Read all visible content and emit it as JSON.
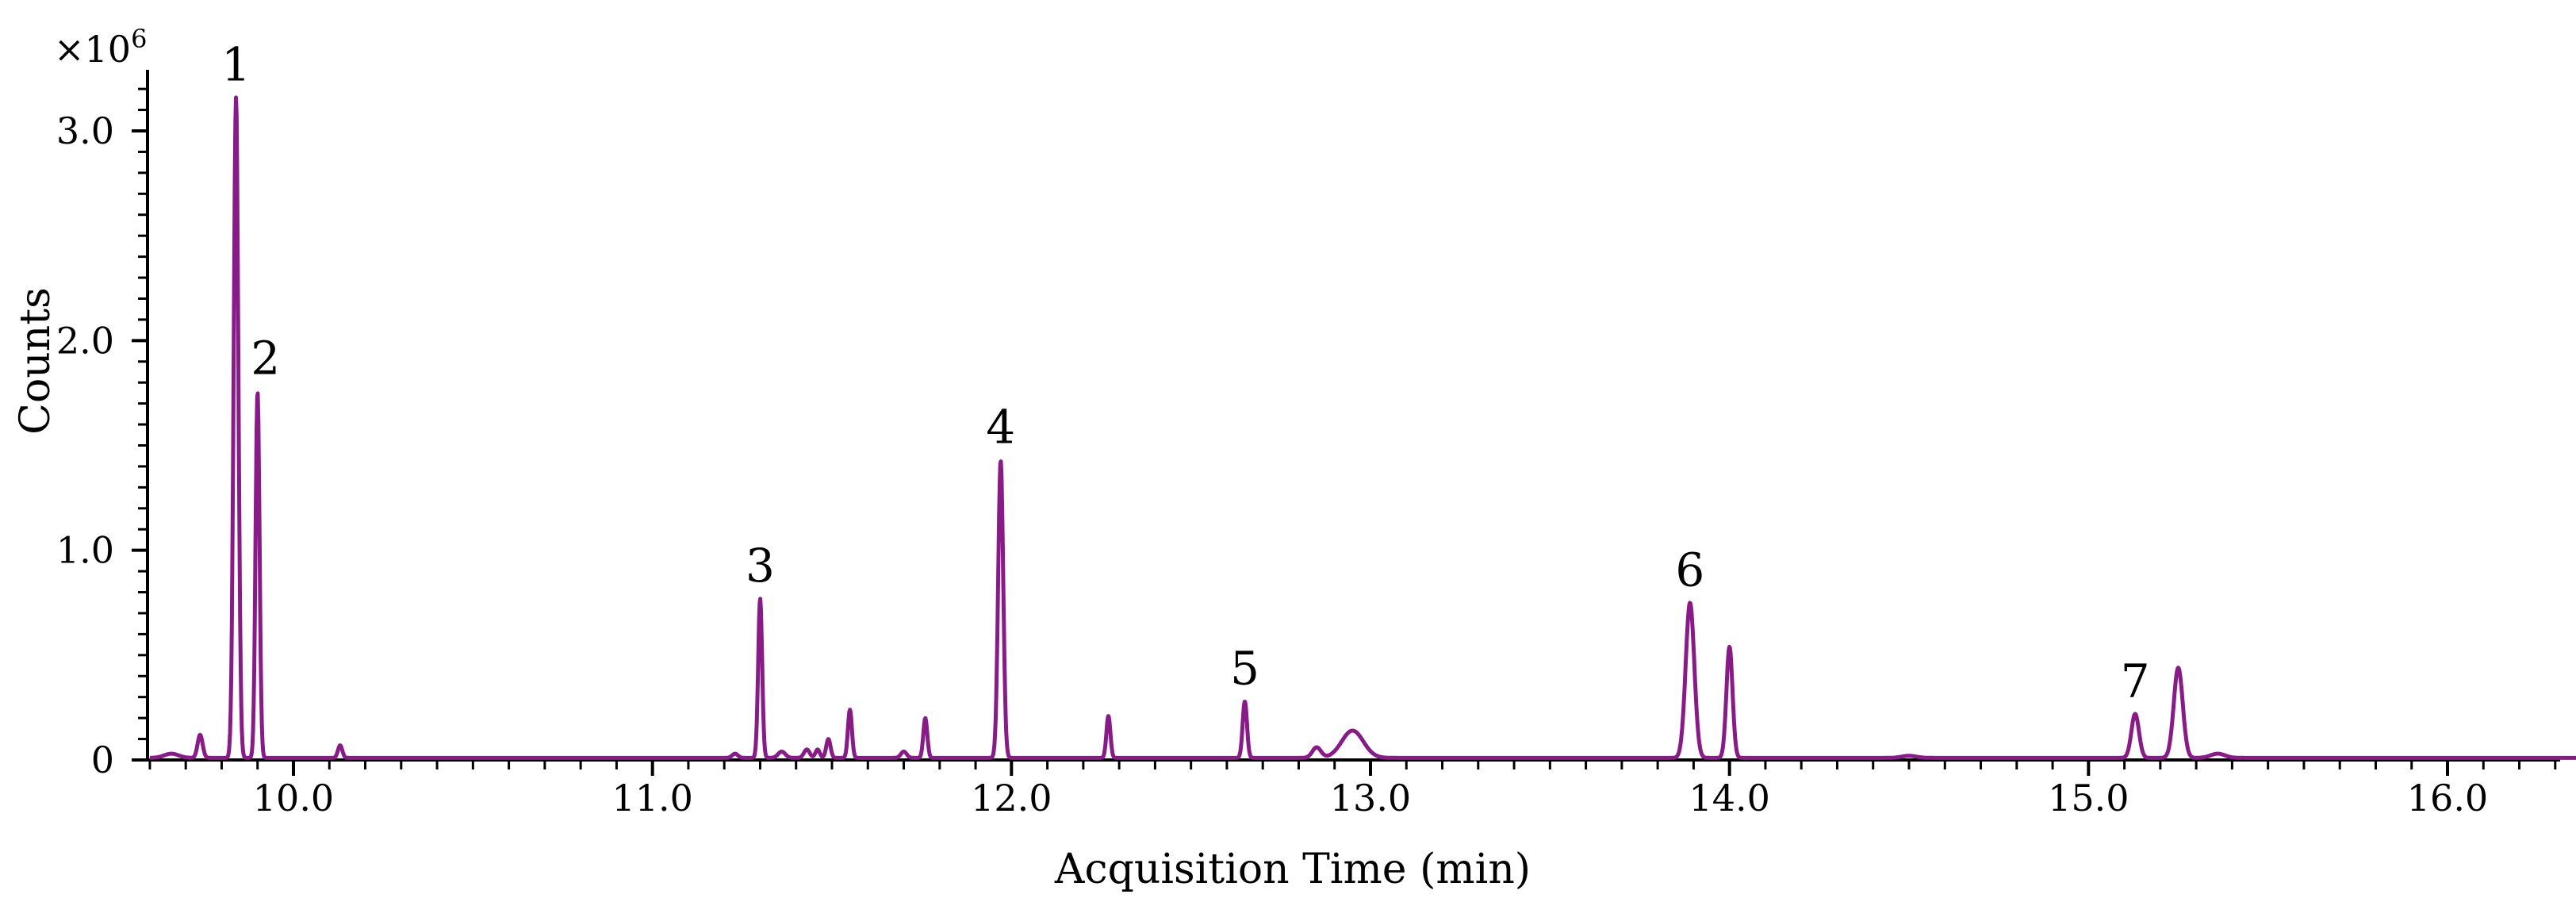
{
  "chart_data": {
    "type": "line",
    "xlabel": "Acquisition Time (min)",
    "ylabel": "Counts",
    "y_multiplier_label": "×10",
    "y_multiplier_exponent": "6",
    "xlim": [
      9.6,
      16.5
    ],
    "ylim": [
      0,
      3.3
    ],
    "x_ticks": [
      {
        "value": 10.0,
        "label": "10.0"
      },
      {
        "value": 11.0,
        "label": "11.0"
      },
      {
        "value": 12.0,
        "label": "12.0"
      },
      {
        "value": 13.0,
        "label": "13.0"
      },
      {
        "value": 14.0,
        "label": "14.0"
      },
      {
        "value": 15.0,
        "label": "15.0"
      },
      {
        "value": 16.0,
        "label": "16.0"
      }
    ],
    "y_ticks": [
      {
        "value": 0,
        "label": "0"
      },
      {
        "value": 1.0,
        "label": "1.0"
      },
      {
        "value": 2.0,
        "label": "2.0"
      },
      {
        "value": 3.0,
        "label": "3.0"
      }
    ],
    "line_color": "#8a1a8a",
    "baseline": 0.01,
    "peaks": [
      {
        "t": 9.66,
        "h": 0.02,
        "w": 0.02
      },
      {
        "t": 9.74,
        "h": 0.11,
        "w": 0.007
      },
      {
        "t": 9.84,
        "h": 3.15,
        "w": 0.0065
      },
      {
        "t": 9.9,
        "h": 1.75,
        "w": 0.0055
      },
      {
        "t": 10.13,
        "h": 0.06,
        "w": 0.006
      },
      {
        "t": 11.23,
        "h": 0.02,
        "w": 0.008
      },
      {
        "t": 11.3,
        "h": 0.76,
        "w": 0.0055
      },
      {
        "t": 11.36,
        "h": 0.03,
        "w": 0.01
      },
      {
        "t": 11.43,
        "h": 0.04,
        "w": 0.008
      },
      {
        "t": 11.46,
        "h": 0.04,
        "w": 0.006
      },
      {
        "t": 11.49,
        "h": 0.09,
        "w": 0.006
      },
      {
        "t": 11.55,
        "h": 0.23,
        "w": 0.0055
      },
      {
        "t": 11.7,
        "h": 0.03,
        "w": 0.008
      },
      {
        "t": 11.76,
        "h": 0.19,
        "w": 0.0055
      },
      {
        "t": 11.97,
        "h": 1.42,
        "w": 0.007
      },
      {
        "t": 12.27,
        "h": 0.2,
        "w": 0.0055
      },
      {
        "t": 12.65,
        "h": 0.27,
        "w": 0.006
      },
      {
        "t": 12.85,
        "h": 0.05,
        "w": 0.012
      },
      {
        "t": 12.95,
        "h": 0.13,
        "w": 0.03
      },
      {
        "t": 13.89,
        "h": 0.74,
        "w": 0.012
      },
      {
        "t": 14.0,
        "h": 0.53,
        "w": 0.0085
      },
      {
        "t": 14.5,
        "h": 0.01,
        "w": 0.02
      },
      {
        "t": 15.13,
        "h": 0.21,
        "w": 0.0105
      },
      {
        "t": 15.25,
        "h": 0.43,
        "w": 0.0125
      },
      {
        "t": 15.36,
        "h": 0.02,
        "w": 0.02
      }
    ],
    "peak_labels": [
      {
        "label": "1",
        "t": 9.84,
        "y": 3.15
      },
      {
        "label": "2",
        "t": 9.9,
        "y": 1.75
      },
      {
        "label": "3",
        "t": 11.3,
        "y": 0.76
      },
      {
        "label": "4",
        "t": 11.97,
        "y": 1.42
      },
      {
        "label": "5",
        "t": 12.65,
        "y": 0.27
      },
      {
        "label": "6",
        "t": 13.89,
        "y": 0.74
      },
      {
        "label": "7",
        "t": 15.13,
        "y": 0.21
      }
    ]
  }
}
